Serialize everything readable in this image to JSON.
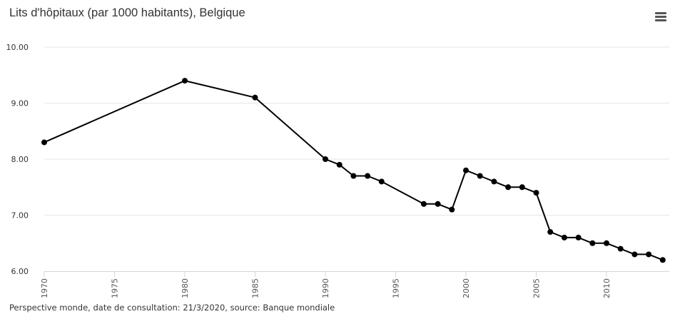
{
  "header": {
    "title": "Lits d'hôpitaux (par 1000 habitants), Belgique",
    "menu_icon": "hamburger-menu-icon"
  },
  "footer": {
    "credits": "Perspective monde, date de consultation: 21/3/2020, source: Banque mondiale"
  },
  "colors": {
    "line": "#000000",
    "grid": "#e6e6e6",
    "axis": "#ccd6eb"
  },
  "chart_data": {
    "type": "line",
    "title": "Lits d'hôpitaux (par 1000 habitants), Belgique",
    "xlabel": "",
    "ylabel": "",
    "xlim": [
      1970,
      2014
    ],
    "ylim": [
      6.0,
      10.0
    ],
    "yticks": [
      "6.00",
      "7.00",
      "8.00",
      "9.00",
      "10.00"
    ],
    "xticks": [
      "1970",
      "1975",
      "1980",
      "1985",
      "1990",
      "1995",
      "2000",
      "2005",
      "2010"
    ],
    "grid": true,
    "legend": "none",
    "series": [
      {
        "x": [
          1970,
          1980,
          1985,
          1990,
          1991,
          1992,
          1993,
          1994,
          1997,
          1998,
          1999,
          2000,
          2001,
          2002,
          2003,
          2004,
          2005,
          2006,
          2007,
          2008,
          2009,
          2010,
          2011,
          2012,
          2013,
          2014
        ],
        "values": [
          8.3,
          9.4,
          9.1,
          8.0,
          7.9,
          7.7,
          7.7,
          7.6,
          7.2,
          7.2,
          7.1,
          7.8,
          7.7,
          7.6,
          7.5,
          7.5,
          7.4,
          6.7,
          6.6,
          6.6,
          6.5,
          6.5,
          6.4,
          6.3,
          6.3,
          6.2
        ]
      }
    ]
  }
}
